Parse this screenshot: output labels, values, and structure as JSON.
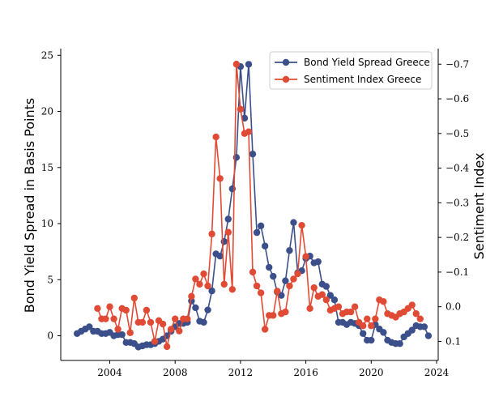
{
  "chart_data": {
    "type": "line",
    "xlabel": "",
    "ylabel": "Bond Yield Spread in Basis Points",
    "y2label": "Sentiment Index",
    "xlim": [
      2001.0,
      2024.1
    ],
    "ylim": [
      -2.2,
      25.6
    ],
    "y2lim": [
      0.155,
      -0.745
    ],
    "y2_inverted": true,
    "xticks": [
      2004,
      2008,
      2012,
      2016,
      2020,
      2024
    ],
    "yticks": [
      0,
      5,
      10,
      15,
      20,
      25
    ],
    "y2ticks": [
      0.1,
      0.0,
      -0.1,
      -0.2,
      -0.3,
      -0.4,
      -0.5,
      -0.6,
      -0.7
    ],
    "y2ticklabels": [
      "0.1",
      "0.0",
      "−0.1",
      "−0.2",
      "−0.3",
      "−0.4",
      "−0.5",
      "−0.6",
      "−0.7"
    ],
    "legend_position": "top-right",
    "grid": false,
    "series": [
      {
        "name": "Bond Yield Spread Greece",
        "axis": "left",
        "color": "#3b4f8a",
        "x": [
          2002.0,
          2002.25,
          2002.5,
          2002.75,
          2003.0,
          2003.25,
          2003.5,
          2003.75,
          2004.0,
          2004.25,
          2004.5,
          2004.75,
          2005.0,
          2005.25,
          2005.5,
          2005.75,
          2006.0,
          2006.25,
          2006.5,
          2006.75,
          2007.0,
          2007.25,
          2007.5,
          2007.75,
          2008.0,
          2008.25,
          2008.5,
          2008.75,
          2009.0,
          2009.25,
          2009.5,
          2009.75,
          2010.0,
          2010.25,
          2010.5,
          2010.75,
          2011.0,
          2011.25,
          2011.5,
          2011.75,
          2012.0,
          2012.25,
          2012.5,
          2012.75,
          2013.0,
          2013.25,
          2013.5,
          2013.75,
          2014.0,
          2014.25,
          2014.5,
          2014.75,
          2015.0,
          2015.25,
          2015.5,
          2015.75,
          2016.0,
          2016.25,
          2016.5,
          2016.75,
          2017.0,
          2017.25,
          2017.5,
          2017.75,
          2018.0,
          2018.25,
          2018.5,
          2018.75,
          2019.0,
          2019.25,
          2019.5,
          2019.75,
          2020.0,
          2020.25,
          2020.5,
          2020.75,
          2021.0,
          2021.25,
          2021.5,
          2021.75,
          2022.0,
          2022.25,
          2022.5,
          2022.75,
          2023.0,
          2023.25,
          2023.5
        ],
        "values": [
          0.2,
          0.4,
          0.6,
          0.8,
          0.4,
          0.4,
          0.2,
          0.2,
          0.3,
          0.0,
          0.1,
          0.1,
          -0.6,
          -0.6,
          -0.7,
          -1.0,
          -0.9,
          -0.8,
          -0.8,
          -0.7,
          -0.5,
          -0.3,
          0.0,
          0.4,
          0.8,
          1.1,
          1.1,
          1.2,
          3.1,
          2.5,
          1.3,
          1.2,
          2.3,
          4.0,
          7.3,
          7.1,
          8.4,
          10.4,
          13.1,
          15.9,
          24.0,
          19.4,
          24.2,
          16.2,
          9.2,
          9.8,
          8.0,
          6.1,
          5.3,
          3.9,
          3.6,
          4.9,
          7.6,
          10.1,
          5.6,
          5.8,
          6.9,
          7.1,
          6.5,
          6.6,
          4.6,
          4.4,
          3.6,
          3.2,
          1.2,
          1.2,
          1.0,
          1.2,
          1.1,
          0.9,
          0.2,
          -0.4,
          -0.4,
          1.0,
          0.6,
          0.3,
          -0.4,
          -0.6,
          -0.7,
          -0.7,
          -0.1,
          0.2,
          0.5,
          0.9,
          0.8,
          0.8,
          0.0
        ]
      },
      {
        "name": "Sentiment Index Greece",
        "axis": "right",
        "color": "#e04b35",
        "x": [
          2003.25,
          2003.5,
          2003.75,
          2004.0,
          2004.25,
          2004.5,
          2004.75,
          2005.0,
          2005.25,
          2005.5,
          2005.75,
          2006.0,
          2006.25,
          2006.5,
          2006.75,
          2007.0,
          2007.25,
          2007.5,
          2007.75,
          2008.0,
          2008.25,
          2008.5,
          2008.75,
          2009.0,
          2009.25,
          2009.5,
          2009.75,
          2010.0,
          2010.25,
          2010.5,
          2010.75,
          2011.0,
          2011.25,
          2011.5,
          2011.75,
          2012.0,
          2012.25,
          2012.5,
          2012.75,
          2013.0,
          2013.25,
          2013.5,
          2013.75,
          2014.0,
          2014.25,
          2014.5,
          2014.75,
          2015.0,
          2015.25,
          2015.5,
          2015.75,
          2016.0,
          2016.25,
          2016.5,
          2016.75,
          2017.0,
          2017.25,
          2017.5,
          2017.75,
          2018.0,
          2018.25,
          2018.5,
          2018.75,
          2019.0,
          2019.25,
          2019.5,
          2019.75,
          2020.0,
          2020.25,
          2020.5,
          2020.75,
          2021.0,
          2021.25,
          2021.5,
          2021.75,
          2022.0,
          2022.25,
          2022.5,
          2022.75,
          2023.0
        ],
        "values": [
          0.005,
          0.035,
          0.035,
          0.0,
          0.035,
          0.065,
          0.005,
          0.01,
          0.075,
          -0.025,
          0.045,
          0.045,
          0.01,
          0.045,
          0.1,
          0.04,
          0.05,
          0.115,
          0.065,
          0.035,
          0.07,
          0.035,
          0.035,
          -0.03,
          -0.08,
          -0.065,
          -0.095,
          -0.06,
          -0.21,
          -0.49,
          -0.37,
          -0.065,
          -0.215,
          -0.05,
          -0.7,
          -0.57,
          -0.5,
          -0.505,
          -0.1,
          -0.06,
          -0.04,
          0.065,
          0.025,
          0.025,
          -0.045,
          0.02,
          0.015,
          -0.06,
          -0.08,
          -0.095,
          -0.235,
          -0.145,
          0.005,
          -0.055,
          -0.03,
          -0.035,
          -0.02,
          0.01,
          0.005,
          0.0,
          0.02,
          0.015,
          0.015,
          0.0,
          0.045,
          0.055,
          0.035,
          0.055,
          0.035,
          -0.02,
          -0.015,
          0.02,
          0.025,
          0.03,
          0.02,
          0.015,
          0.005,
          -0.005,
          0.02,
          0.035
        ]
      }
    ]
  }
}
